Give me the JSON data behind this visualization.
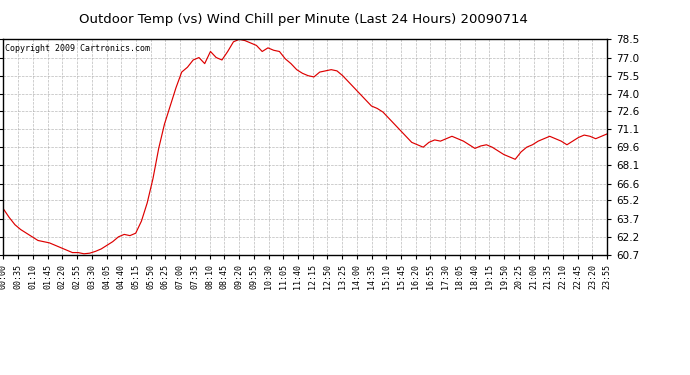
{
  "title": "Outdoor Temp (vs) Wind Chill per Minute (Last 24 Hours) 20090714",
  "copyright": "Copyright 2009 Cartronics.com",
  "line_color": "#dd0000",
  "background_color": "#ffffff",
  "grid_color": "#aaaaaa",
  "ylim": [
    60.7,
    78.5
  ],
  "yticks": [
    60.7,
    62.2,
    63.7,
    65.2,
    66.6,
    68.1,
    69.6,
    71.1,
    72.6,
    74.0,
    75.5,
    77.0,
    78.5
  ],
  "xtick_labels": [
    "00:00",
    "00:35",
    "01:10",
    "01:45",
    "02:20",
    "02:55",
    "03:30",
    "04:05",
    "04:40",
    "05:15",
    "05:50",
    "06:25",
    "07:00",
    "07:35",
    "08:10",
    "08:45",
    "09:20",
    "09:55",
    "10:30",
    "11:05",
    "11:40",
    "12:15",
    "12:50",
    "13:25",
    "14:00",
    "14:35",
    "15:10",
    "15:45",
    "16:20",
    "16:55",
    "17:30",
    "18:05",
    "18:40",
    "19:15",
    "19:50",
    "20:25",
    "21:00",
    "21:35",
    "22:10",
    "22:45",
    "23:20",
    "23:55"
  ],
  "data_points": [
    64.5,
    63.8,
    63.2,
    62.8,
    62.5,
    62.2,
    61.9,
    61.8,
    61.7,
    61.5,
    61.3,
    61.1,
    60.9,
    60.9,
    60.8,
    60.85,
    61.0,
    61.2,
    61.5,
    61.8,
    62.2,
    62.4,
    62.3,
    62.5,
    63.5,
    65.0,
    67.0,
    69.5,
    71.5,
    73.0,
    74.5,
    75.8,
    76.2,
    76.8,
    77.0,
    76.5,
    77.5,
    77.0,
    76.8,
    77.5,
    78.3,
    78.5,
    78.4,
    78.2,
    78.0,
    77.5,
    77.8,
    77.6,
    77.5,
    76.9,
    76.5,
    76.0,
    75.7,
    75.5,
    75.4,
    75.8,
    75.9,
    76.0,
    75.9,
    75.5,
    75.0,
    74.5,
    74.0,
    73.5,
    73.0,
    72.8,
    72.5,
    72.0,
    71.5,
    71.0,
    70.5,
    70.0,
    69.8,
    69.6,
    70.0,
    70.2,
    70.1,
    70.3,
    70.5,
    70.3,
    70.1,
    69.8,
    69.5,
    69.7,
    69.8,
    69.6,
    69.3,
    69.0,
    68.8,
    68.6,
    69.2,
    69.6,
    69.8,
    70.1,
    70.3,
    70.5,
    70.3,
    70.1,
    69.8,
    70.1,
    70.4,
    70.6,
    70.5,
    70.3,
    70.5,
    70.7
  ]
}
